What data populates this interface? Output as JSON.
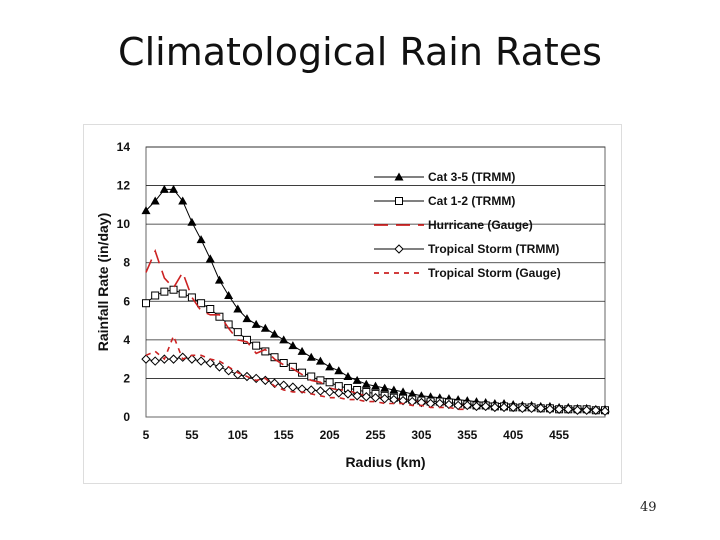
{
  "slide": {
    "title": "Climatological Rain Rates",
    "page_number": "49"
  },
  "chart_data": {
    "type": "line",
    "title": "",
    "xlabel": "Radius (km)",
    "ylabel": "Rainfall Rate (in/day)",
    "xlim": [
      5,
      505
    ],
    "ylim": [
      0,
      14
    ],
    "xticks": [
      5,
      55,
      105,
      155,
      205,
      255,
      305,
      355,
      405,
      455
    ],
    "yticks": [
      0,
      2,
      4,
      6,
      8,
      10,
      12,
      14
    ],
    "grid": "horizontal",
    "legend_position": "top-right",
    "series": [
      {
        "name": "Cat 3-5 (TRMM)",
        "color": "#000000",
        "marker": "triangle",
        "dash": "solid",
        "x": [
          5,
          15,
          25,
          35,
          45,
          55,
          65,
          75,
          85,
          95,
          105,
          115,
          125,
          135,
          145,
          155,
          165,
          175,
          185,
          195,
          205,
          215,
          225,
          235,
          245,
          255,
          265,
          275,
          285,
          295,
          305,
          315,
          325,
          335,
          345,
          355,
          365,
          375,
          385,
          395,
          405,
          415,
          425,
          435,
          445,
          455,
          465,
          475,
          485,
          495,
          505
        ],
        "y": [
          10.7,
          11.2,
          11.8,
          11.8,
          11.2,
          10.1,
          9.2,
          8.2,
          7.1,
          6.3,
          5.6,
          5.1,
          4.8,
          4.6,
          4.3,
          4.0,
          3.7,
          3.4,
          3.1,
          2.9,
          2.6,
          2.4,
          2.1,
          1.9,
          1.7,
          1.6,
          1.5,
          1.4,
          1.3,
          1.2,
          1.1,
          1.05,
          1.0,
          0.95,
          0.9,
          0.85,
          0.8,
          0.75,
          0.7,
          0.7,
          0.65,
          0.6,
          0.6,
          0.55,
          0.55,
          0.5,
          0.5,
          0.45,
          0.45,
          0.4,
          0.4
        ]
      },
      {
        "name": "Cat 1-2 (TRMM)",
        "color": "#000000",
        "marker": "square",
        "dash": "solid",
        "x": [
          5,
          15,
          25,
          35,
          45,
          55,
          65,
          75,
          85,
          95,
          105,
          115,
          125,
          135,
          145,
          155,
          165,
          175,
          185,
          195,
          205,
          215,
          225,
          235,
          245,
          255,
          265,
          275,
          285,
          295,
          305,
          315,
          325,
          335,
          345,
          355,
          365,
          375,
          385,
          395,
          405,
          415,
          425,
          435,
          445,
          455,
          465,
          475,
          485,
          495,
          505
        ],
        "y": [
          5.9,
          6.3,
          6.5,
          6.6,
          6.4,
          6.2,
          5.9,
          5.6,
          5.2,
          4.8,
          4.4,
          4.0,
          3.7,
          3.4,
          3.1,
          2.8,
          2.6,
          2.3,
          2.1,
          1.9,
          1.8,
          1.6,
          1.5,
          1.4,
          1.3,
          1.2,
          1.1,
          1.0,
          0.95,
          0.9,
          0.85,
          0.8,
          0.8,
          0.75,
          0.7,
          0.65,
          0.6,
          0.6,
          0.55,
          0.55,
          0.5,
          0.5,
          0.5,
          0.45,
          0.45,
          0.4,
          0.4,
          0.4,
          0.4,
          0.35,
          0.35
        ]
      },
      {
        "name": "Hurricane (Gauge)",
        "color": "#cc2222",
        "marker": "none",
        "dash": "14 8",
        "x": [
          5,
          15,
          25,
          35,
          45,
          55,
          65,
          75,
          85,
          95,
          105,
          115,
          125,
          135,
          145,
          155,
          165,
          175,
          185,
          195,
          205,
          215,
          225,
          235,
          245,
          255,
          265,
          275,
          285,
          295,
          305,
          315,
          325,
          335,
          345,
          355
        ],
        "y": [
          7.5,
          8.6,
          7.2,
          6.7,
          7.5,
          6.2,
          5.5,
          5.3,
          5.3,
          4.6,
          4.0,
          3.9,
          3.3,
          3.5,
          3.0,
          2.7,
          2.5,
          2.2,
          1.9,
          1.8,
          1.5,
          1.4,
          1.4,
          1.2,
          1.1,
          1.0,
          1.0,
          0.9,
          0.9,
          0.8,
          0.8,
          0.7,
          0.7,
          0.6,
          0.6,
          0.6
        ]
      },
      {
        "name": "Tropical Storm (TRMM)",
        "color": "#000000",
        "marker": "diamond",
        "dash": "solid",
        "x": [
          5,
          15,
          25,
          35,
          45,
          55,
          65,
          75,
          85,
          95,
          105,
          115,
          125,
          135,
          145,
          155,
          165,
          175,
          185,
          195,
          205,
          215,
          225,
          235,
          245,
          255,
          265,
          275,
          285,
          295,
          305,
          315,
          325,
          335,
          345,
          355,
          365,
          375,
          385,
          395,
          405,
          415,
          425,
          435,
          445,
          455,
          465,
          475,
          485,
          495,
          505
        ],
        "y": [
          3.0,
          2.9,
          3.0,
          3.0,
          3.1,
          3.0,
          2.9,
          2.8,
          2.6,
          2.4,
          2.2,
          2.1,
          2.0,
          1.9,
          1.75,
          1.65,
          1.55,
          1.45,
          1.4,
          1.35,
          1.3,
          1.25,
          1.2,
          1.1,
          1.05,
          1.0,
          0.95,
          0.9,
          0.85,
          0.8,
          0.75,
          0.7,
          0.7,
          0.65,
          0.6,
          0.6,
          0.55,
          0.55,
          0.5,
          0.5,
          0.5,
          0.45,
          0.45,
          0.45,
          0.4,
          0.4,
          0.4,
          0.35,
          0.35,
          0.35,
          0.3
        ]
      },
      {
        "name": "Tropical Storm (Gauge)",
        "color": "#cc2222",
        "marker": "none",
        "dash": "5 5",
        "x": [
          5,
          15,
          25,
          35,
          45,
          55,
          65,
          75,
          85,
          95,
          105,
          115,
          125,
          135,
          145,
          155,
          165,
          175,
          185,
          195,
          205,
          215,
          225,
          235,
          245,
          255,
          265,
          275,
          285,
          295,
          305,
          315,
          325,
          335,
          345,
          355
        ],
        "y": [
          3.2,
          3.4,
          3.0,
          4.2,
          3.0,
          3.2,
          3.2,
          3.0,
          2.9,
          2.6,
          2.3,
          2.1,
          1.9,
          2.0,
          1.6,
          1.4,
          1.3,
          1.3,
          1.2,
          1.1,
          1.0,
          1.0,
          0.9,
          0.9,
          0.8,
          0.8,
          0.7,
          0.7,
          0.7,
          0.6,
          0.6,
          0.5,
          0.5,
          0.5,
          0.4,
          0.4
        ]
      }
    ]
  }
}
